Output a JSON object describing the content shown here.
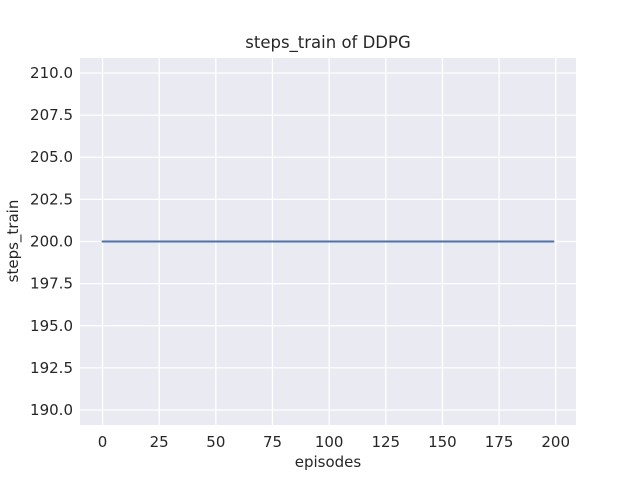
{
  "chart_data": {
    "type": "line",
    "title": "steps_train of DDPG",
    "xlabel": "episodes",
    "ylabel": "steps_train",
    "x_tick_values": [
      0,
      25,
      50,
      75,
      100,
      125,
      150,
      175,
      200
    ],
    "x_tick_labels": [
      "0",
      "25",
      "50",
      "75",
      "100",
      "125",
      "150",
      "175",
      "200"
    ],
    "y_tick_values": [
      190.0,
      192.5,
      195.0,
      197.5,
      200.0,
      202.5,
      205.0,
      207.5,
      210.0
    ],
    "y_tick_labels": [
      "190.0",
      "192.5",
      "195.0",
      "197.5",
      "200.0",
      "202.5",
      "205.0",
      "207.5",
      "210.0"
    ],
    "xlim": [
      -9.95,
      208.95
    ],
    "ylim": [
      189.11,
      210.89
    ],
    "grid": true,
    "legend": false,
    "series": [
      {
        "name": "steps_train",
        "color": "#4c72b0",
        "x": [
          0,
          199
        ],
        "y": [
          200,
          200
        ]
      }
    ],
    "colors": {
      "figure_background": "#ffffff",
      "axes_background": "#eaeaf2",
      "gridline": "#ffffff",
      "text": "#262626",
      "line": "#4c72b0"
    }
  }
}
